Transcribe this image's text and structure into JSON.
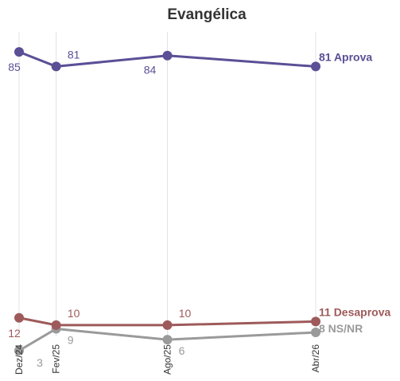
{
  "chart_data": {
    "type": "line",
    "title": "Evangélica",
    "categories": [
      "Dez/24",
      "Fev/25",
      "Ago/25",
      "Abr/26"
    ],
    "x_dates": [
      "2024-12",
      "2025-02",
      "2025-08",
      "2026-04"
    ],
    "xlabel": "",
    "ylabel": "",
    "ylim": [
      0,
      100
    ],
    "grid": "vertical",
    "legend": "none",
    "series": [
      {
        "name": "Aprova",
        "values": [
          85,
          81,
          84,
          81
        ],
        "color": "#5b4f96",
        "labels": [
          "85",
          "81",
          "84",
          "81"
        ],
        "end_label": "81 Aprova"
      },
      {
        "name": "Desaprova",
        "values": [
          12,
          10,
          10,
          11
        ],
        "color": "#9e5a5a",
        "labels": [
          "12",
          "10",
          "10",
          "11"
        ],
        "end_label": "11 Desaprova"
      },
      {
        "name": "NS/NR",
        "values": [
          3,
          9,
          6,
          8
        ],
        "color": "#9a9a9a",
        "labels": [
          "3",
          "9",
          "6",
          "8"
        ],
        "end_label": "8 NS/NR"
      }
    ]
  }
}
